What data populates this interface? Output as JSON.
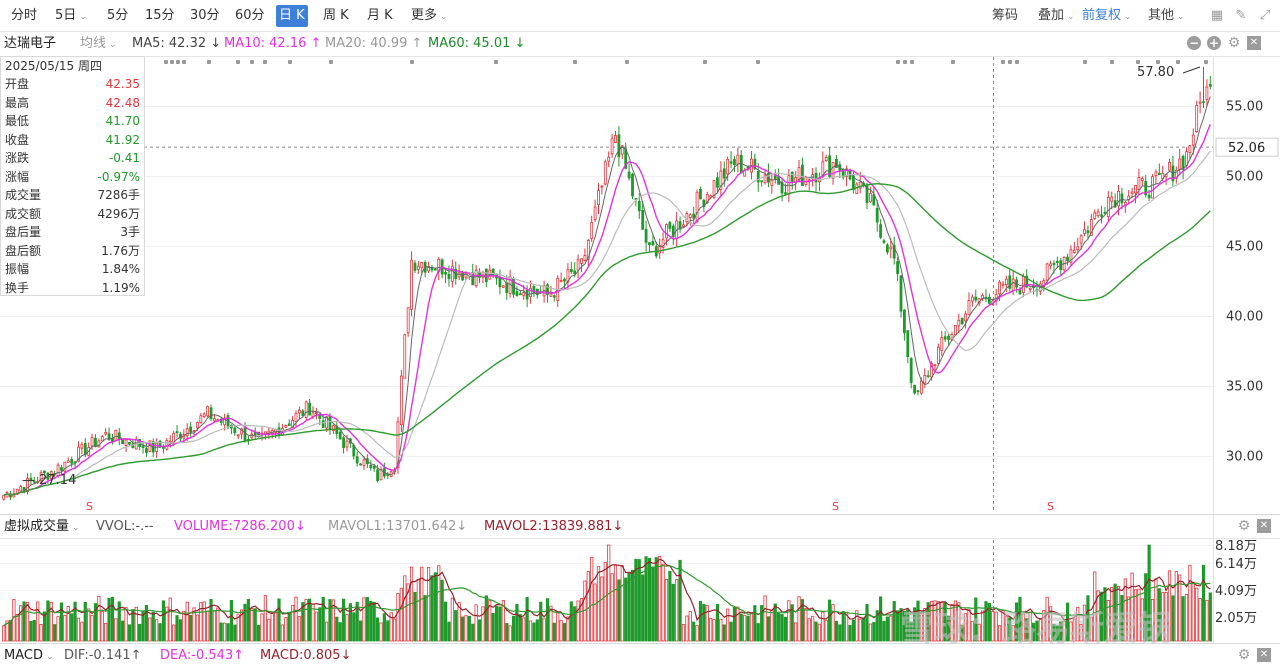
{
  "toolbar": {
    "periods": [
      "分时",
      "5日",
      "5分",
      "15分",
      "30分",
      "60分",
      "日 K",
      "周 K",
      "月 K",
      "更多"
    ],
    "active_period": "日 K",
    "right_items": [
      "筹码",
      "叠加",
      "前复权",
      "其他"
    ]
  },
  "main_indicator": {
    "stock_name": "达瑞电子",
    "avg_line_label": "均线",
    "ma5": "MA5: 42.32 ↓",
    "ma10": "MA10: 42.16 ↑",
    "ma20": "MA20: 40.99 ↑",
    "ma60": "MA60: 45.01 ↓"
  },
  "info_panel": {
    "date": "2025/05/15 周四",
    "rows": [
      {
        "label": "开盘",
        "value": "42.35",
        "color": "#e8343a"
      },
      {
        "label": "最高",
        "value": "42.48",
        "color": "#e8343a"
      },
      {
        "label": "最低",
        "value": "41.70",
        "color": "#1f9a2b"
      },
      {
        "label": "收盘",
        "value": "41.92",
        "color": "#1f9a2b"
      },
      {
        "label": "涨跌",
        "value": "-0.41",
        "color": "#1f9a2b"
      },
      {
        "label": "涨幅",
        "value": "-0.97%",
        "color": "#1f9a2b"
      },
      {
        "label": "成交量",
        "value": "7286手",
        "color": "#333333"
      },
      {
        "label": "成交额",
        "value": "4296万",
        "color": "#333333"
      },
      {
        "label": "盘后量",
        "value": "3手",
        "color": "#333333"
      },
      {
        "label": "盘后额",
        "value": "1.76万",
        "color": "#333333"
      },
      {
        "label": "振幅",
        "value": "1.84%",
        "color": "#333333"
      },
      {
        "label": "换手",
        "value": "1.19%",
        "color": "#333333"
      }
    ]
  },
  "volume_indicator": {
    "title": "虚拟成交量",
    "vvol": "VVOL:-.--",
    "volume": "VOLUME:7286.200↓",
    "mavol1": "MAVOL1:13701.642↓",
    "mavol2": "MAVOL2:13839.881↓"
  },
  "macd_indicator": {
    "title": "MACD",
    "dif": "DIF:-0.141↑",
    "dea": "DEA:-0.543↑",
    "macd": "MACD:0.805↓"
  },
  "watermark": "雪球：路易斯爱锅",
  "colors": {
    "up": "#e8343a",
    "down": "#1f9a2b",
    "ma5": "#666666",
    "ma10": "#e62fe6",
    "ma20": "#bbbbbb",
    "ma60": "#2f9a2f",
    "accent": "#3d7fd9"
  },
  "chart_data": {
    "type": "candlestick",
    "price_axis": {
      "ticks": [
        30.0,
        35.0,
        40.0,
        45.0,
        50.0,
        55.0
      ],
      "range": [
        26.0,
        58.5
      ]
    },
    "current_price_label": "52.06",
    "max_price_label": "57.80",
    "min_price_label": "27.14",
    "volume_axis": {
      "ticks": [
        "8.18万",
        "6.14万",
        "4.09万",
        "2.05万"
      ]
    },
    "signal_marker": "S",
    "key_points": [
      {
        "x": 0,
        "price": 27.2
      },
      {
        "x": 15,
        "price": 29.0
      },
      {
        "x": 30,
        "price": 31.5
      },
      {
        "x": 45,
        "price": 30.5
      },
      {
        "x": 60,
        "price": 33.0
      },
      {
        "x": 75,
        "price": 31.0
      },
      {
        "x": 90,
        "price": 33.5
      },
      {
        "x": 100,
        "price": 31.0
      },
      {
        "x": 110,
        "price": 28.5
      },
      {
        "x": 115,
        "price": 29.5
      },
      {
        "x": 120,
        "price": 44.0
      },
      {
        "x": 130,
        "price": 43.5
      },
      {
        "x": 145,
        "price": 42.5
      },
      {
        "x": 160,
        "price": 41.5
      },
      {
        "x": 170,
        "price": 43.5
      },
      {
        "x": 180,
        "price": 53.0
      },
      {
        "x": 190,
        "price": 44.5
      },
      {
        "x": 200,
        "price": 47.0
      },
      {
        "x": 215,
        "price": 51.0
      },
      {
        "x": 230,
        "price": 49.5
      },
      {
        "x": 245,
        "price": 51.0
      },
      {
        "x": 255,
        "price": 48.0
      },
      {
        "x": 262,
        "price": 44.0
      },
      {
        "x": 268,
        "price": 34.0
      },
      {
        "x": 275,
        "price": 37.5
      },
      {
        "x": 285,
        "price": 41.0
      },
      {
        "x": 295,
        "price": 42.0
      },
      {
        "x": 305,
        "price": 42.5
      },
      {
        "x": 315,
        "price": 45.0
      },
      {
        "x": 325,
        "price": 48.5
      },
      {
        "x": 340,
        "price": 49.5
      },
      {
        "x": 348,
        "price": 51.5
      },
      {
        "x": 353,
        "price": 56.0
      }
    ]
  }
}
